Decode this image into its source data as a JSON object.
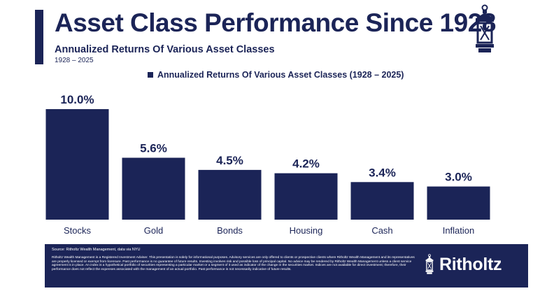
{
  "header": {
    "title": "Asset Class Performance Since 1928",
    "subtitle": "Annualized Returns Of Various Asset Classes",
    "date_range": "1928 – 2025"
  },
  "colors": {
    "navy": "#1b2457",
    "white": "#ffffff"
  },
  "icons": {
    "logo": "lantern-icon",
    "brand_logo": "lantern-icon"
  },
  "legend": {
    "label": "Annualized Returns Of Various Asset Classes (1928 – 2025)"
  },
  "chart_data": {
    "type": "bar",
    "title": "",
    "xlabel": "",
    "ylabel": "",
    "categories": [
      "Stocks",
      "Gold",
      "Bonds",
      "Housing",
      "Cash",
      "Inflation"
    ],
    "series": [
      {
        "name": "Annualized Returns Of Various Asset Classes (1928 – 2025)",
        "values": [
          10.0,
          5.6,
          4.5,
          4.2,
          3.4,
          3.0
        ],
        "labels": [
          "10.0%",
          "5.6%",
          "4.5%",
          "4.2%",
          "3.4%",
          "3.0%"
        ]
      }
    ],
    "ylim": [
      0,
      10
    ],
    "grid": false,
    "legend_position": "top"
  },
  "footer": {
    "source": "Source: Ritholtz Wealth Management, data via NYU",
    "disclaimer": "Ritholtz Wealth Management is a Registered Investment Adviser. This presentation is solely for informational purposes. Advisory services are only offered to clients or prospective clients where Ritholtz Wealth Management and its representatives are properly licensed or exempt from licensure. Past performance is no guarantee of future results. Investing involves risk and possible loss of principal capital. No advice may be rendered by Ritholtz Wealth Management unless a client service agreement is in place. An index is a hypothetical portfolio of securities representing a particular market or a segment of it used as indicator of the change in the securities market. Indices are not available for direct investment; therefore, their performance does not reflect the expenses associated with the management of an actual portfolio. Past performance is not necessarily indicative of future results.",
    "brand": "Ritholtz"
  }
}
